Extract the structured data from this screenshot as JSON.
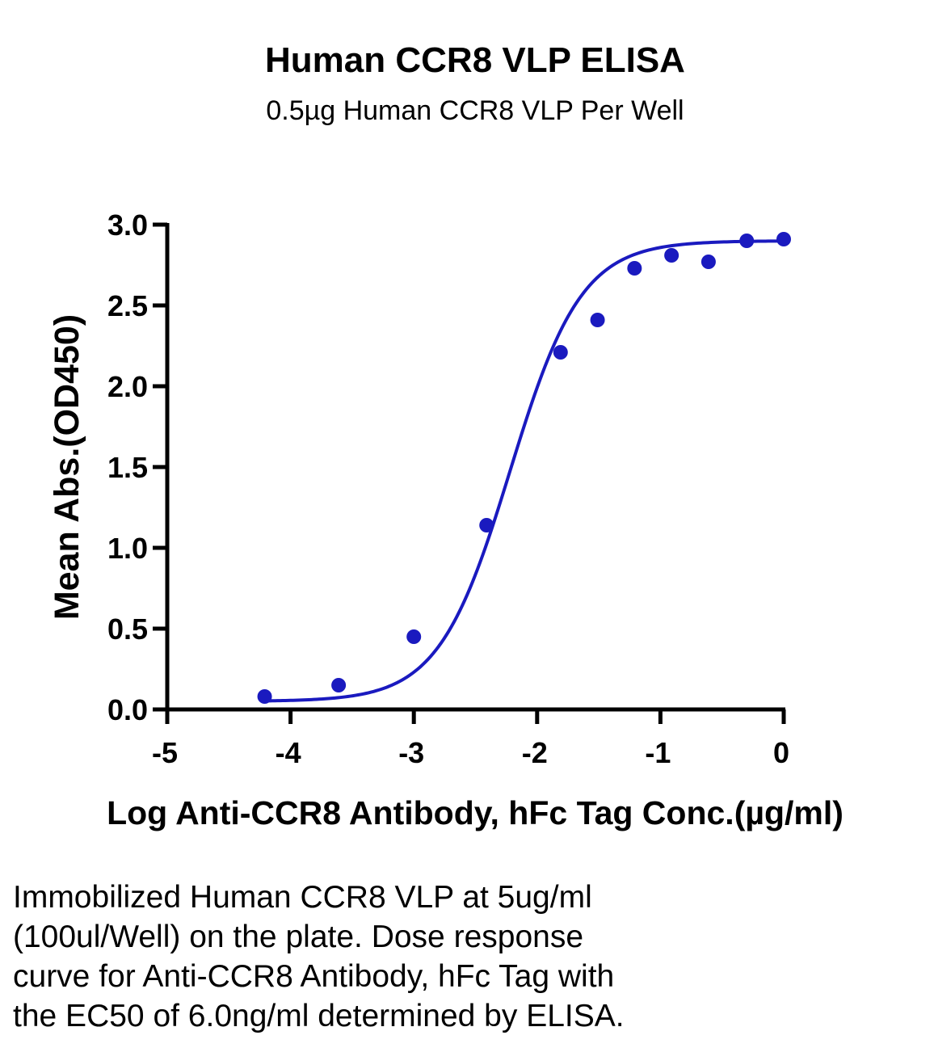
{
  "chart_data": {
    "type": "scatter",
    "title": "Human CCR8 VLP ELISA",
    "subtitle": "0.5µg Human CCR8 VLP Per Well",
    "xlabel": "Log Anti-CCR8 Antibody, hFc Tag Conc.(µg/ml)",
    "ylabel": "Mean Abs.(OD450)",
    "xlim": [
      -5,
      0
    ],
    "ylim": [
      0,
      3
    ],
    "x_ticks": [
      "-5",
      "-4",
      "-3",
      "-2",
      "-1",
      "0"
    ],
    "y_ticks": [
      "0.0",
      "0.5",
      "1.0",
      "1.5",
      "2.0",
      "2.5",
      "3.0"
    ],
    "grid": false,
    "color": "#1a1abf",
    "series": [
      {
        "x": [
          -4.21,
          -3.61,
          -3.0,
          -2.41,
          -1.81,
          -1.51,
          -1.21,
          -0.91,
          -0.61,
          -0.3,
          0.0
        ],
        "y": [
          0.08,
          0.15,
          0.45,
          1.14,
          2.21,
          2.41,
          2.73,
          2.81,
          2.77,
          2.9,
          2.91
        ]
      }
    ],
    "fit": {
      "model": "4PL",
      "bottom": 0.05,
      "top": 2.9,
      "logEC50": -2.22,
      "hill": 1.5
    }
  },
  "caption_lines": [
    "Immobilized Human CCR8 VLP at 5ug/ml",
    "(100ul/Well) on the plate. Dose response",
    "curve for Anti-CCR8 Antibody, hFc Tag with",
    "the EC50 of 6.0ng/ml determined by ELISA."
  ]
}
